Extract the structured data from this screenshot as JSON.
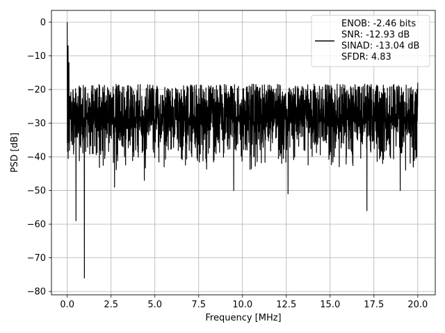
{
  "chart_data": {
    "type": "line",
    "title": "",
    "xlabel": "Frequency [MHz]",
    "ylabel": "PSD [dB]",
    "xlim": [
      -0.9,
      21.0
    ],
    "ylim": [
      -81,
      3.5
    ],
    "xticks": [
      0.0,
      2.5,
      5.0,
      7.5,
      10.0,
      12.5,
      15.0,
      17.5,
      20.0
    ],
    "xtick_labels": [
      "0.0",
      "2.5",
      "5.0",
      "7.5",
      "10.0",
      "12.5",
      "15.0",
      "17.5",
      "20.0"
    ],
    "yticks": [
      0,
      -10,
      -20,
      -30,
      -40,
      -50,
      -60,
      -70,
      -80
    ],
    "ytick_labels": [
      "0",
      "−10",
      "−20",
      "−30",
      "−40",
      "−50",
      "−60",
      "−70",
      "−80"
    ],
    "grid": true,
    "legend_position": "top-right",
    "line_color": "#000000",
    "series": [
      {
        "name": "ENOB: -2.46 bits",
        "legend_lines": [
          "ENOB: -2.46 bits",
          "SNR: -12.93 dB",
          "SINAD: -13.04 dB",
          "SFDR: 4.83"
        ],
        "x_range": [
          0.0,
          20.0
        ],
        "noise_floor_mean": -28,
        "noise_upper_peaks": -16,
        "noise_lower_peaks": -45,
        "notable_points": [
          {
            "x": 0.0,
            "y": 0
          },
          {
            "x": 0.05,
            "y": -7
          },
          {
            "x": 0.1,
            "y": -12
          },
          {
            "x": 0.5,
            "y": -59
          },
          {
            "x": 0.98,
            "y": -76
          },
          {
            "x": 2.7,
            "y": -49
          },
          {
            "x": 4.4,
            "y": -47
          },
          {
            "x": 9.5,
            "y": -50
          },
          {
            "x": 12.6,
            "y": -51
          },
          {
            "x": 17.1,
            "y": -56
          },
          {
            "x": 19.0,
            "y": -50
          },
          {
            "x": 20.0,
            "y": -18
          }
        ]
      }
    ]
  }
}
